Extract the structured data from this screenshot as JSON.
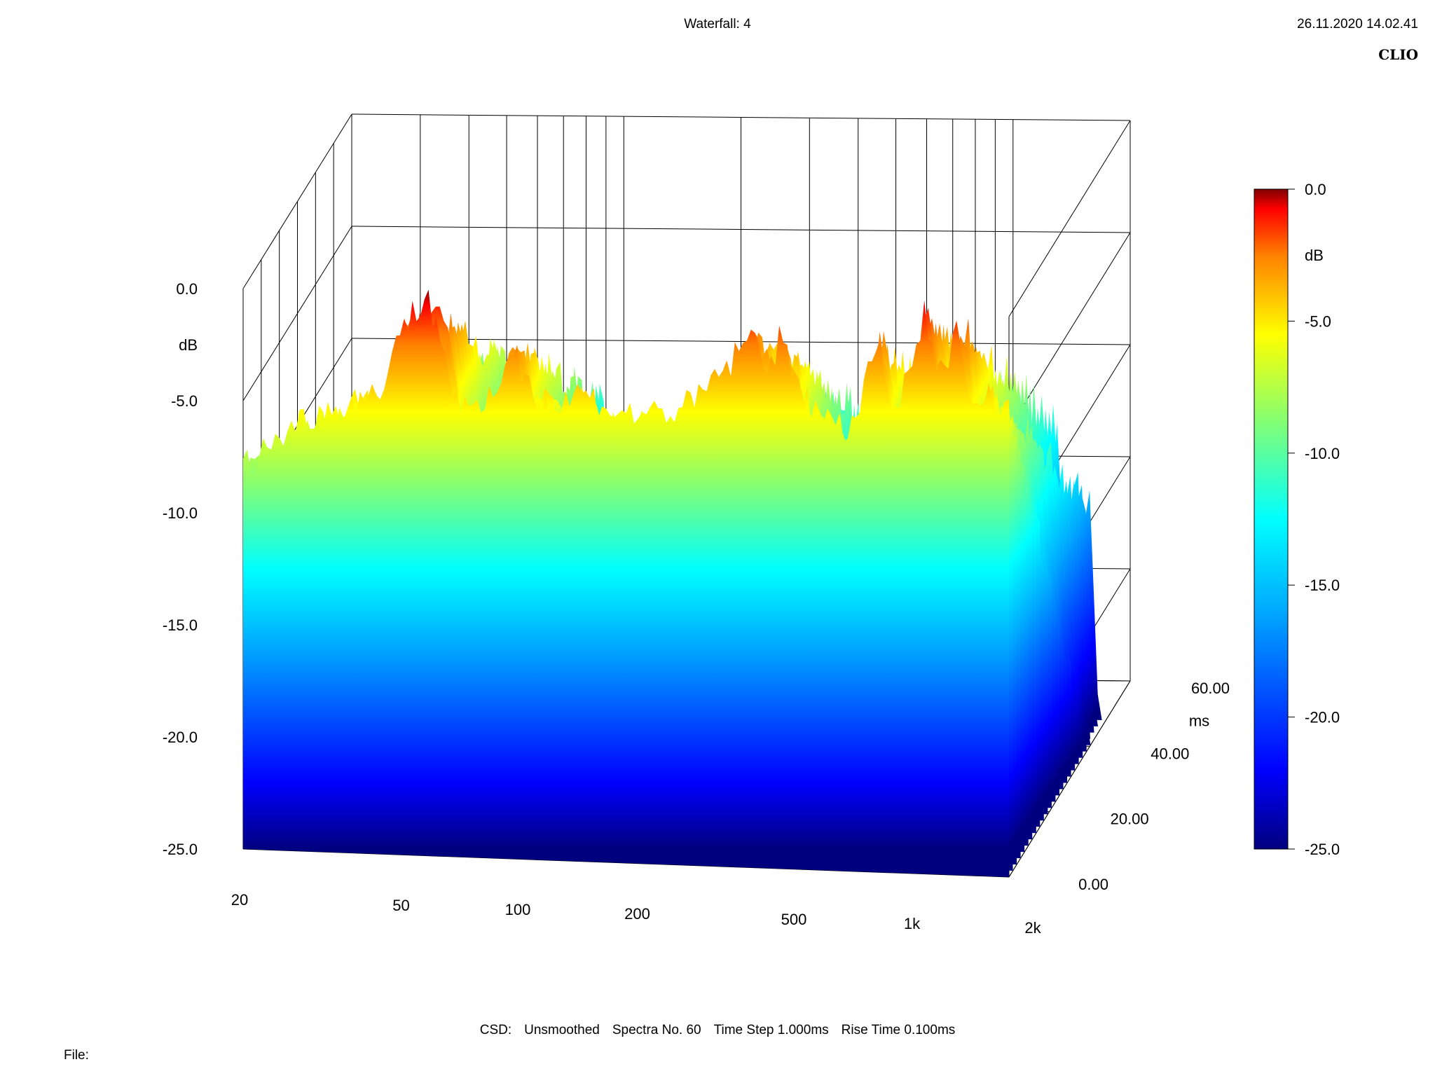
{
  "header": {
    "title": "Waterfall: 4",
    "date": "26.11.2020 14.02.41",
    "brand": "CLIO"
  },
  "footer": {
    "csd": "CSD:",
    "smoothing": "Unsmoothed",
    "spectra": "Spectra No. 60",
    "time_step": "Time Step 1.000ms",
    "rise_time": "Rise Time 0.100ms",
    "file_label": "File:"
  },
  "colors": {
    "accent_red": "#ff0000",
    "yellow": "#ffff00",
    "cyan": "#00ffff",
    "blue": "#0000ff",
    "navy": "#00007f"
  },
  "chart_data": {
    "type": "waterfall",
    "z_axis": {
      "ticks": [
        "0.0",
        "dB",
        "-5.0",
        "-10.0",
        "-15.0",
        "-20.0",
        "-25.0"
      ],
      "range": [
        -25,
        0
      ],
      "unit": "dB"
    },
    "x_axis": {
      "ticks": [
        "20",
        "50",
        "100",
        "200",
        "500",
        "1k",
        "2k"
      ],
      "scale": "log",
      "range": [
        20,
        2000
      ]
    },
    "y_axis": {
      "ticks": [
        "0.00",
        "20.00",
        "40.00",
        "ms",
        "60.00"
      ],
      "unit": "ms",
      "range": [
        0,
        60
      ]
    },
    "colorbar": {
      "ticks": [
        "0.0",
        "dB",
        "-5.0",
        "-10.0",
        "-15.0",
        "-20.0",
        "-25.0"
      ],
      "range": [
        -25,
        0
      ],
      "colormap": "jet"
    },
    "grid": true,
    "spectra_count": 60,
    "resonance_peaks_hz": [
      38,
      52,
      65,
      100,
      125,
      340,
      420,
      500,
      900,
      1200,
      1500,
      1800
    ],
    "spectrum_t0_db": [
      [
        20,
        -8
      ],
      [
        25,
        -6.5
      ],
      [
        30,
        -5.5
      ],
      [
        35,
        -5.2
      ],
      [
        40,
        -4.8
      ],
      [
        45,
        -4.5
      ],
      [
        50,
        -2.0
      ],
      [
        55,
        -1.0
      ],
      [
        60,
        0.0
      ],
      [
        65,
        -1.5
      ],
      [
        70,
        -4.0
      ],
      [
        80,
        -5.5
      ],
      [
        90,
        -4.5
      ],
      [
        100,
        -2.0
      ],
      [
        110,
        -3.5
      ],
      [
        130,
        -5.0
      ],
      [
        150,
        -4.0
      ],
      [
        170,
        -4.5
      ],
      [
        200,
        -5.0
      ],
      [
        250,
        -4.8
      ],
      [
        300,
        -4.5
      ],
      [
        340,
        -3.2
      ],
      [
        400,
        -2.0
      ],
      [
        420,
        -1.2
      ],
      [
        480,
        -2.5
      ],
      [
        500,
        -1.5
      ],
      [
        600,
        -4.0
      ],
      [
        700,
        -5.5
      ],
      [
        800,
        -4.8
      ],
      [
        900,
        -1.3
      ],
      [
        1000,
        -4.5
      ],
      [
        1100,
        -3.0
      ],
      [
        1200,
        0.0
      ],
      [
        1300,
        -3.0
      ],
      [
        1500,
        -0.5
      ],
      [
        1600,
        -4.0
      ],
      [
        1800,
        -3.5
      ],
      [
        2000,
        -4.0
      ]
    ]
  }
}
